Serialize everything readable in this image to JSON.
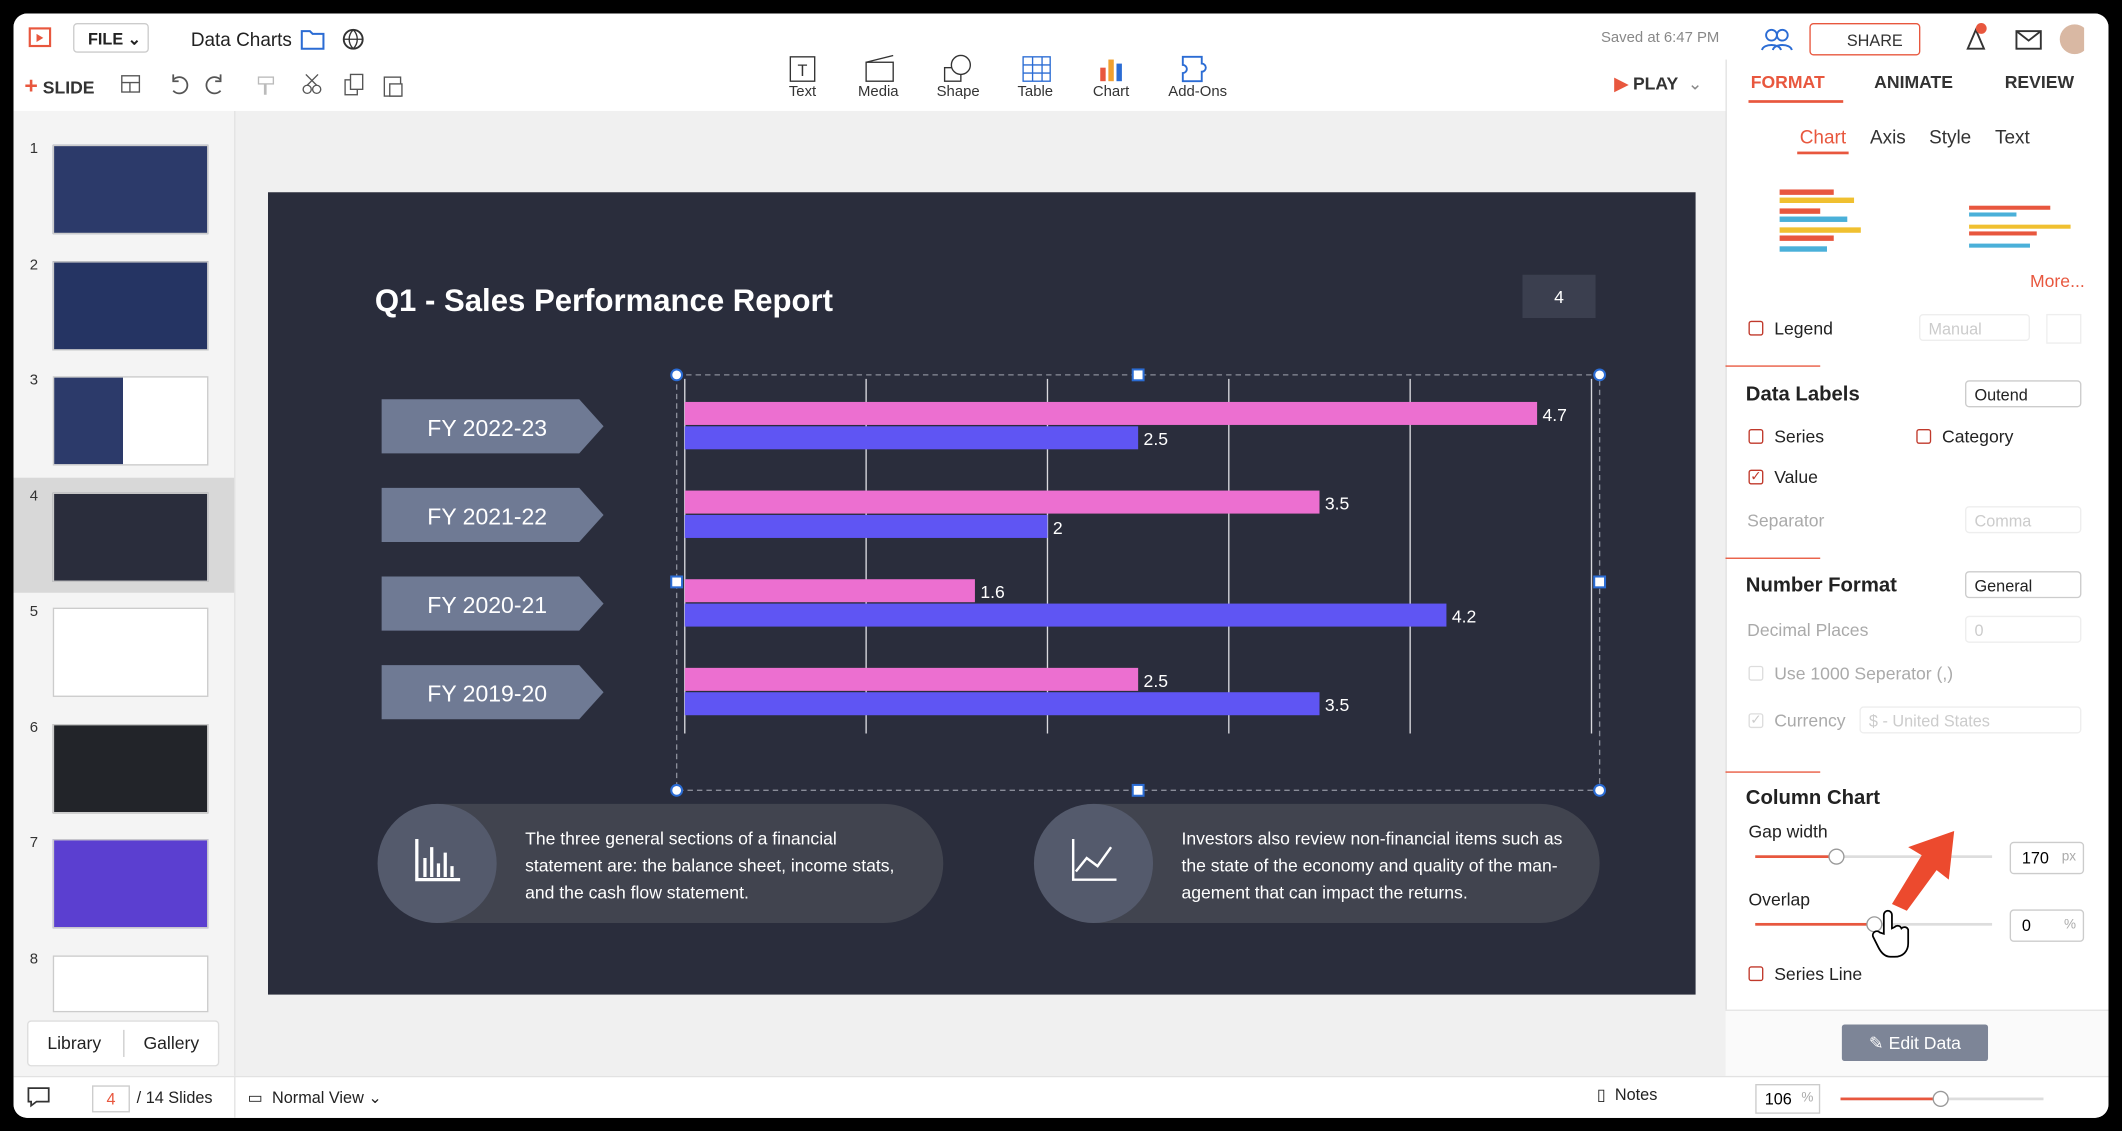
{
  "app": {
    "file_menu": "FILE",
    "doc_title": "Data Charts",
    "saved": "Saved at 6:47 PM",
    "share": "SHARE",
    "slide_button": "SLIDE",
    "play": "PLAY",
    "insert_tools": [
      "Text",
      "Media",
      "Shape",
      "Table",
      "Chart",
      "Add-Ons"
    ]
  },
  "panel_tabs": [
    "FORMAT",
    "ANIMATE",
    "REVIEW"
  ],
  "sub_tabs": [
    "Chart",
    "Axis",
    "Style",
    "Text"
  ],
  "more": "More...",
  "legend": {
    "label": "Legend",
    "mode": "Manual"
  },
  "data_labels": {
    "heading": "Data Labels",
    "position": "Outend",
    "series": "Series",
    "category": "Category",
    "value": "Value",
    "separator": "Separator",
    "separator_value": "Comma"
  },
  "number_format": {
    "heading": "Number Format",
    "format": "General",
    "decimal_places": "Decimal Places",
    "decimal_value": "0",
    "thousand_sep": "Use 1000 Seperator (,)",
    "currency": "Currency",
    "currency_value": "$ - United States"
  },
  "column_chart": {
    "heading": "Column Chart",
    "gap_width": "Gap width",
    "gap_value": 170,
    "gap_unit": "px",
    "overlap": "Overlap",
    "overlap_value": 0,
    "overlap_unit": "%",
    "series_line": "Series Line"
  },
  "edit_data": "Edit Data",
  "slides_panel": {
    "numbers": [
      1,
      2,
      3,
      4,
      5,
      6,
      7,
      8
    ],
    "library": "Library",
    "gallery": "Gallery"
  },
  "status": {
    "current": 4,
    "total": "/ 14 Slides",
    "view": "Normal View",
    "notes": "Notes",
    "zoom": 106,
    "zoom_unit": "%"
  },
  "slide": {
    "title": "Q1 - Sales Performance Report",
    "page_number": 4,
    "chart": {
      "type": "bar",
      "orientation": "horizontal",
      "categories": [
        "FY 2022-23",
        "FY 2021-22",
        "FY 2020-21",
        "FY 2019-20"
      ],
      "series": [
        {
          "color": "#ec6fd0",
          "values": [
            4.7,
            3.5,
            1.6,
            2.5
          ]
        },
        {
          "color": "#5f55f3",
          "values": [
            2.5,
            2,
            4.2,
            3.5
          ]
        }
      ],
      "xlim": [
        0,
        5
      ],
      "xticks": [
        0,
        1,
        2,
        3,
        4,
        5
      ],
      "grid": true
    },
    "notes": [
      [
        "The three general sections of a financial",
        "statement are: the balance sheet, income stats,",
        "and the cash flow statement."
      ],
      [
        "Investors also review non-financial items such as",
        "the state of the economy and quality of the man-",
        "agement that can impact the returns."
      ]
    ]
  }
}
